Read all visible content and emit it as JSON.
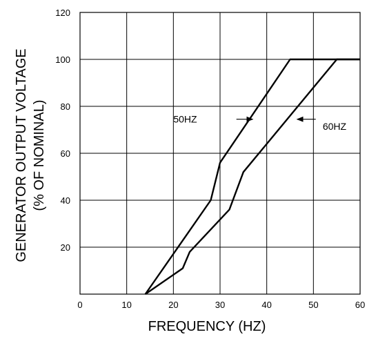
{
  "chart_data": {
    "type": "line",
    "xlabel": "FREQUENCY (HZ)",
    "ylabel_line1": "GENERATOR OUTPUT VOLTAGE",
    "ylabel_line2": "(% OF NOMINAL)",
    "xlim": [
      0,
      60
    ],
    "ylim": [
      0,
      120
    ],
    "x_ticks": [
      0,
      10,
      20,
      30,
      40,
      50,
      60
    ],
    "y_ticks": [
      20,
      40,
      60,
      80,
      100,
      120
    ],
    "grid": true,
    "series": [
      {
        "name": "50HZ",
        "color": "#000000",
        "points": [
          [
            14,
            0
          ],
          [
            28,
            40
          ],
          [
            30,
            56
          ],
          [
            45,
            100
          ],
          [
            60,
            100
          ]
        ]
      },
      {
        "name": "60HZ",
        "color": "#000000",
        "points": [
          [
            14,
            0
          ],
          [
            22,
            11
          ],
          [
            23.5,
            18
          ],
          [
            32,
            36
          ],
          [
            35,
            52
          ],
          [
            55,
            100
          ],
          [
            60,
            100
          ]
        ]
      }
    ],
    "annotations": [
      {
        "text": "50HZ",
        "series": "50HZ",
        "label_x": 20,
        "label_y": 74.5,
        "arrow_from": [
          33.5,
          74.5
        ],
        "arrow_to": [
          37,
          74.5
        ],
        "label_side": "left"
      },
      {
        "text": "60HZ",
        "series": "60HZ",
        "label_x": 52,
        "label_y": 71.5,
        "arrow_from": [
          50.5,
          74.5
        ],
        "arrow_to": [
          46.5,
          74.5
        ],
        "label_side": "right"
      }
    ]
  }
}
